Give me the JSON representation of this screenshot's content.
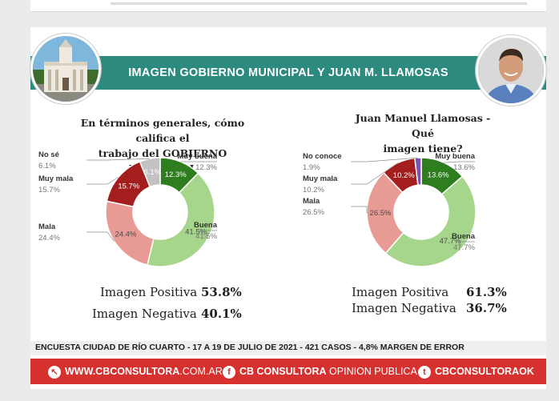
{
  "header": {
    "title": "IMAGEN GOBIERNO MUNICIPAL Y JUAN M. LLAMOSAS"
  },
  "left": {
    "question_line1": "En términos generales, cómo califica el",
    "question_line2": "trabajo del GOBIERNO MUNICIPAL",
    "results": [
      {
        "label": "Imagen Positiva",
        "value": "53.8%"
      },
      {
        "label": "Imagen Negativa",
        "value": "40.1%"
      }
    ]
  },
  "right": {
    "question_line1": "Juan Manuel Llamosas - Qué",
    "question_line2": "imagen tiene?",
    "results": [
      {
        "label": "Imagen Positiva",
        "value": "61.3%"
      },
      {
        "label": "Imagen Negativa",
        "value": "36.7%"
      }
    ]
  },
  "chart_data": [
    {
      "type": "pie",
      "title": "En términos generales, cómo califica el trabajo del GOBIERNO MUNICIPAL",
      "slices": [
        {
          "label": "Muy buena",
          "value": 12.3,
          "display": "12.3%",
          "color": "#2e7d1e"
        },
        {
          "label": "Buena",
          "value": 41.5,
          "display": "41.5%",
          "color": "#a5d68c"
        },
        {
          "label": "Mala",
          "value": 24.4,
          "display": "24.4%",
          "color": "#e89a95"
        },
        {
          "label": "Muy mala",
          "value": 15.7,
          "display": "15.7%",
          "color": "#a41e1e"
        },
        {
          "label": "No sé",
          "value": 6.1,
          "display": "6.1%",
          "color": "#c2c2c2"
        }
      ]
    },
    {
      "type": "pie",
      "title": "Juan Manuel Llamosas - Qué imagen tiene?",
      "slices": [
        {
          "label": "Muy buena",
          "value": 13.6,
          "display": "13.6%",
          "color": "#2e7d1e"
        },
        {
          "label": "Buena",
          "value": 47.7,
          "display": "47.7%",
          "color": "#a5d68c"
        },
        {
          "label": "Mala",
          "value": 26.5,
          "display": "26.5%",
          "color": "#e89a95"
        },
        {
          "label": "Muy mala",
          "value": 10.2,
          "display": "10.2%",
          "color": "#a41e1e"
        },
        {
          "label": "No conoce",
          "value": 1.9,
          "display": "1.9%",
          "color": "#7a52b0"
        }
      ]
    }
  ],
  "footer": {
    "survey": "ENCUESTA CIUDAD DE RÍO CUARTO - 17 A 19 DE JULIO DE 2021 - 421 CASOS - 4,8% MARGEN DE ERROR",
    "web_bold": "WWW.CBCONSULTORA",
    "web_rest": ".COM.AR",
    "fb_bold": "CB CONSULTORA",
    "fb_rest": " OPINION PUBLICA",
    "tw": "CBCONSULTORAOK"
  }
}
